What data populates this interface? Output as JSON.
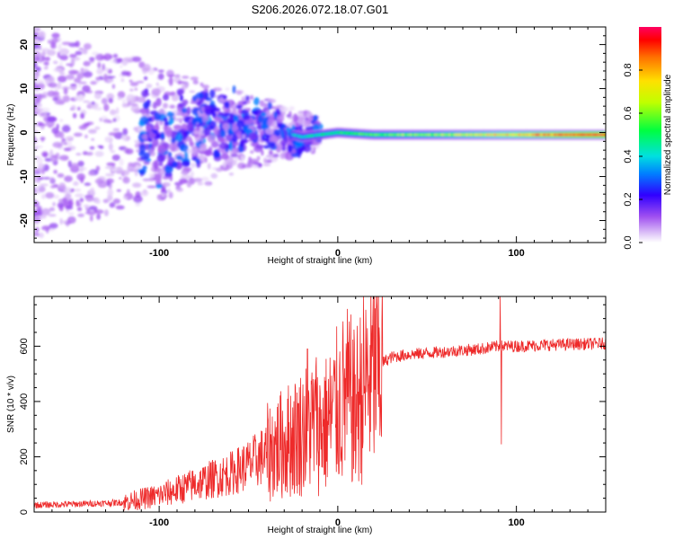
{
  "figure_title": "S206.2026.072.18.07.G01",
  "colors": {
    "snr_line": "#ee2a2a",
    "axis": "#000000",
    "background": "#ffffff"
  },
  "chart_data": [
    {
      "type": "heatmap",
      "title": "S206.2026.072.18.07.G01",
      "xlabel": "Height of straight line (km)",
      "ylabel": "Frequency (Hz)",
      "xlim": [
        -170,
        150
      ],
      "ylim": [
        -25,
        24
      ],
      "x_ticks": [
        -100,
        0,
        100
      ],
      "y_ticks": [
        -20,
        -10,
        0,
        10,
        20
      ],
      "colorbar": {
        "label": "Normalized spectral amplitude",
        "range": [
          0,
          1
        ],
        "ticks": [
          0.0,
          0.2,
          0.4,
          0.6,
          0.8
        ],
        "tick_labels": [
          "0.0",
          "0.2",
          "0.4",
          "0.6",
          "0.8"
        ]
      },
      "ridge": {
        "description_points_x": [
          -170,
          -100,
          -50,
          -20,
          0,
          20,
          50,
          100,
          150
        ],
        "frequency": [
          0,
          -0.5,
          2,
          -1,
          0,
          -0.5,
          -0.5,
          -0.5,
          -0.5
        ],
        "amplitude": [
          0.03,
          0.15,
          0.25,
          0.4,
          0.5,
          0.55,
          0.6,
          0.75,
          0.95
        ]
      }
    },
    {
      "type": "line",
      "xlabel": "Height of straight line (km)",
      "ylabel": "SNR (10 * v/v)",
      "xlim": [
        -170,
        150
      ],
      "ylim": [
        0,
        780
      ],
      "x_ticks": [
        -100,
        0,
        100
      ],
      "y_ticks": [
        0,
        200,
        400,
        600
      ],
      "series": [
        {
          "name": "SNR",
          "x": [
            -170,
            -140,
            -120,
            -100,
            -80,
            -60,
            -50,
            -40,
            -30,
            -20,
            -15,
            -10,
            -5,
            0,
            5,
            10,
            15,
            20,
            25,
            30,
            40,
            60,
            80,
            90,
            100,
            120,
            150
          ],
          "y": [
            25,
            30,
            35,
            60,
            100,
            140,
            170,
            210,
            250,
            290,
            320,
            300,
            330,
            380,
            420,
            380,
            460,
            500,
            540,
            560,
            570,
            580,
            590,
            600,
            600,
            605,
            610
          ],
          "spikes": [
            {
              "x": -17,
              "y": 590
            },
            {
              "x": -12,
              "y": 560
            },
            {
              "x": 9,
              "y": 660
            },
            {
              "x": 10,
              "y": 140
            },
            {
              "x": 91,
              "y": 780
            },
            {
              "x": 91.5,
              "y": 245
            }
          ]
        }
      ]
    }
  ]
}
